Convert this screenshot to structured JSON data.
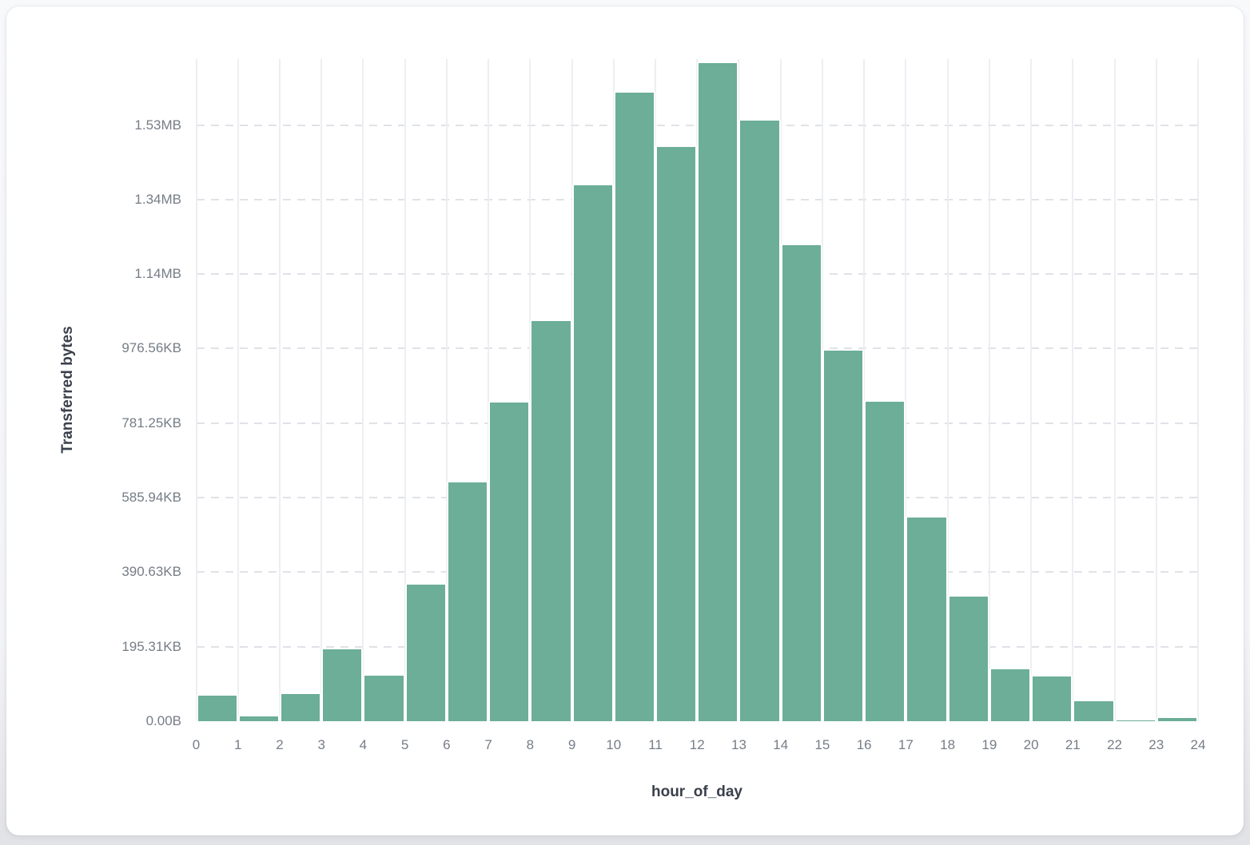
{
  "chart_data": {
    "type": "bar",
    "title": "",
    "xlabel": "hour_of_day",
    "ylabel": "Transferred bytes",
    "x_bin_start_hours": [
      0,
      1,
      2,
      3,
      4,
      5,
      6,
      7,
      8,
      9,
      10,
      11,
      12,
      13,
      14,
      15,
      16,
      17,
      18,
      19,
      20,
      21,
      22,
      23
    ],
    "values_bytes": [
      71000,
      14000,
      76000,
      195000,
      125000,
      369000,
      643000,
      857000,
      1076000,
      1441000,
      1689000,
      1543000,
      1768000,
      1614000,
      1279000,
      997000,
      860000,
      549000,
      336000,
      141000,
      122000,
      55000,
      5000,
      11000
    ],
    "x_tick_labels": [
      "0",
      "1",
      "2",
      "3",
      "4",
      "5",
      "6",
      "7",
      "8",
      "9",
      "10",
      "11",
      "12",
      "13",
      "14",
      "15",
      "16",
      "17",
      "18",
      "19",
      "20",
      "21",
      "22",
      "23",
      "24"
    ],
    "y_tick_labels": [
      "0.00B",
      "195.31KB",
      "390.63KB",
      "585.94KB",
      "781.25KB",
      "976.56KB",
      "1.14MB",
      "1.34MB",
      "1.53MB"
    ],
    "y_tick_bytes": [
      0,
      200000,
      400000,
      600000,
      800000,
      1000000,
      1200000,
      1400000,
      1600000
    ],
    "xlim": [
      0,
      24
    ],
    "ylim": [
      0,
      1777000
    ],
    "grid": {
      "vertical_style": "solid",
      "horizontal_style": "dashed",
      "legend": "none"
    },
    "colors": {
      "bar_fill": "#6CAE98",
      "bar_stroke": "#ffffff",
      "vertical_grid": "#eceef2",
      "horizontal_grid": "#e0e2e8",
      "tick_text": "#767d87",
      "axis_title_text": "#3a404b",
      "card_background": "#ffffff",
      "page_background": "#f3f4f7"
    }
  }
}
